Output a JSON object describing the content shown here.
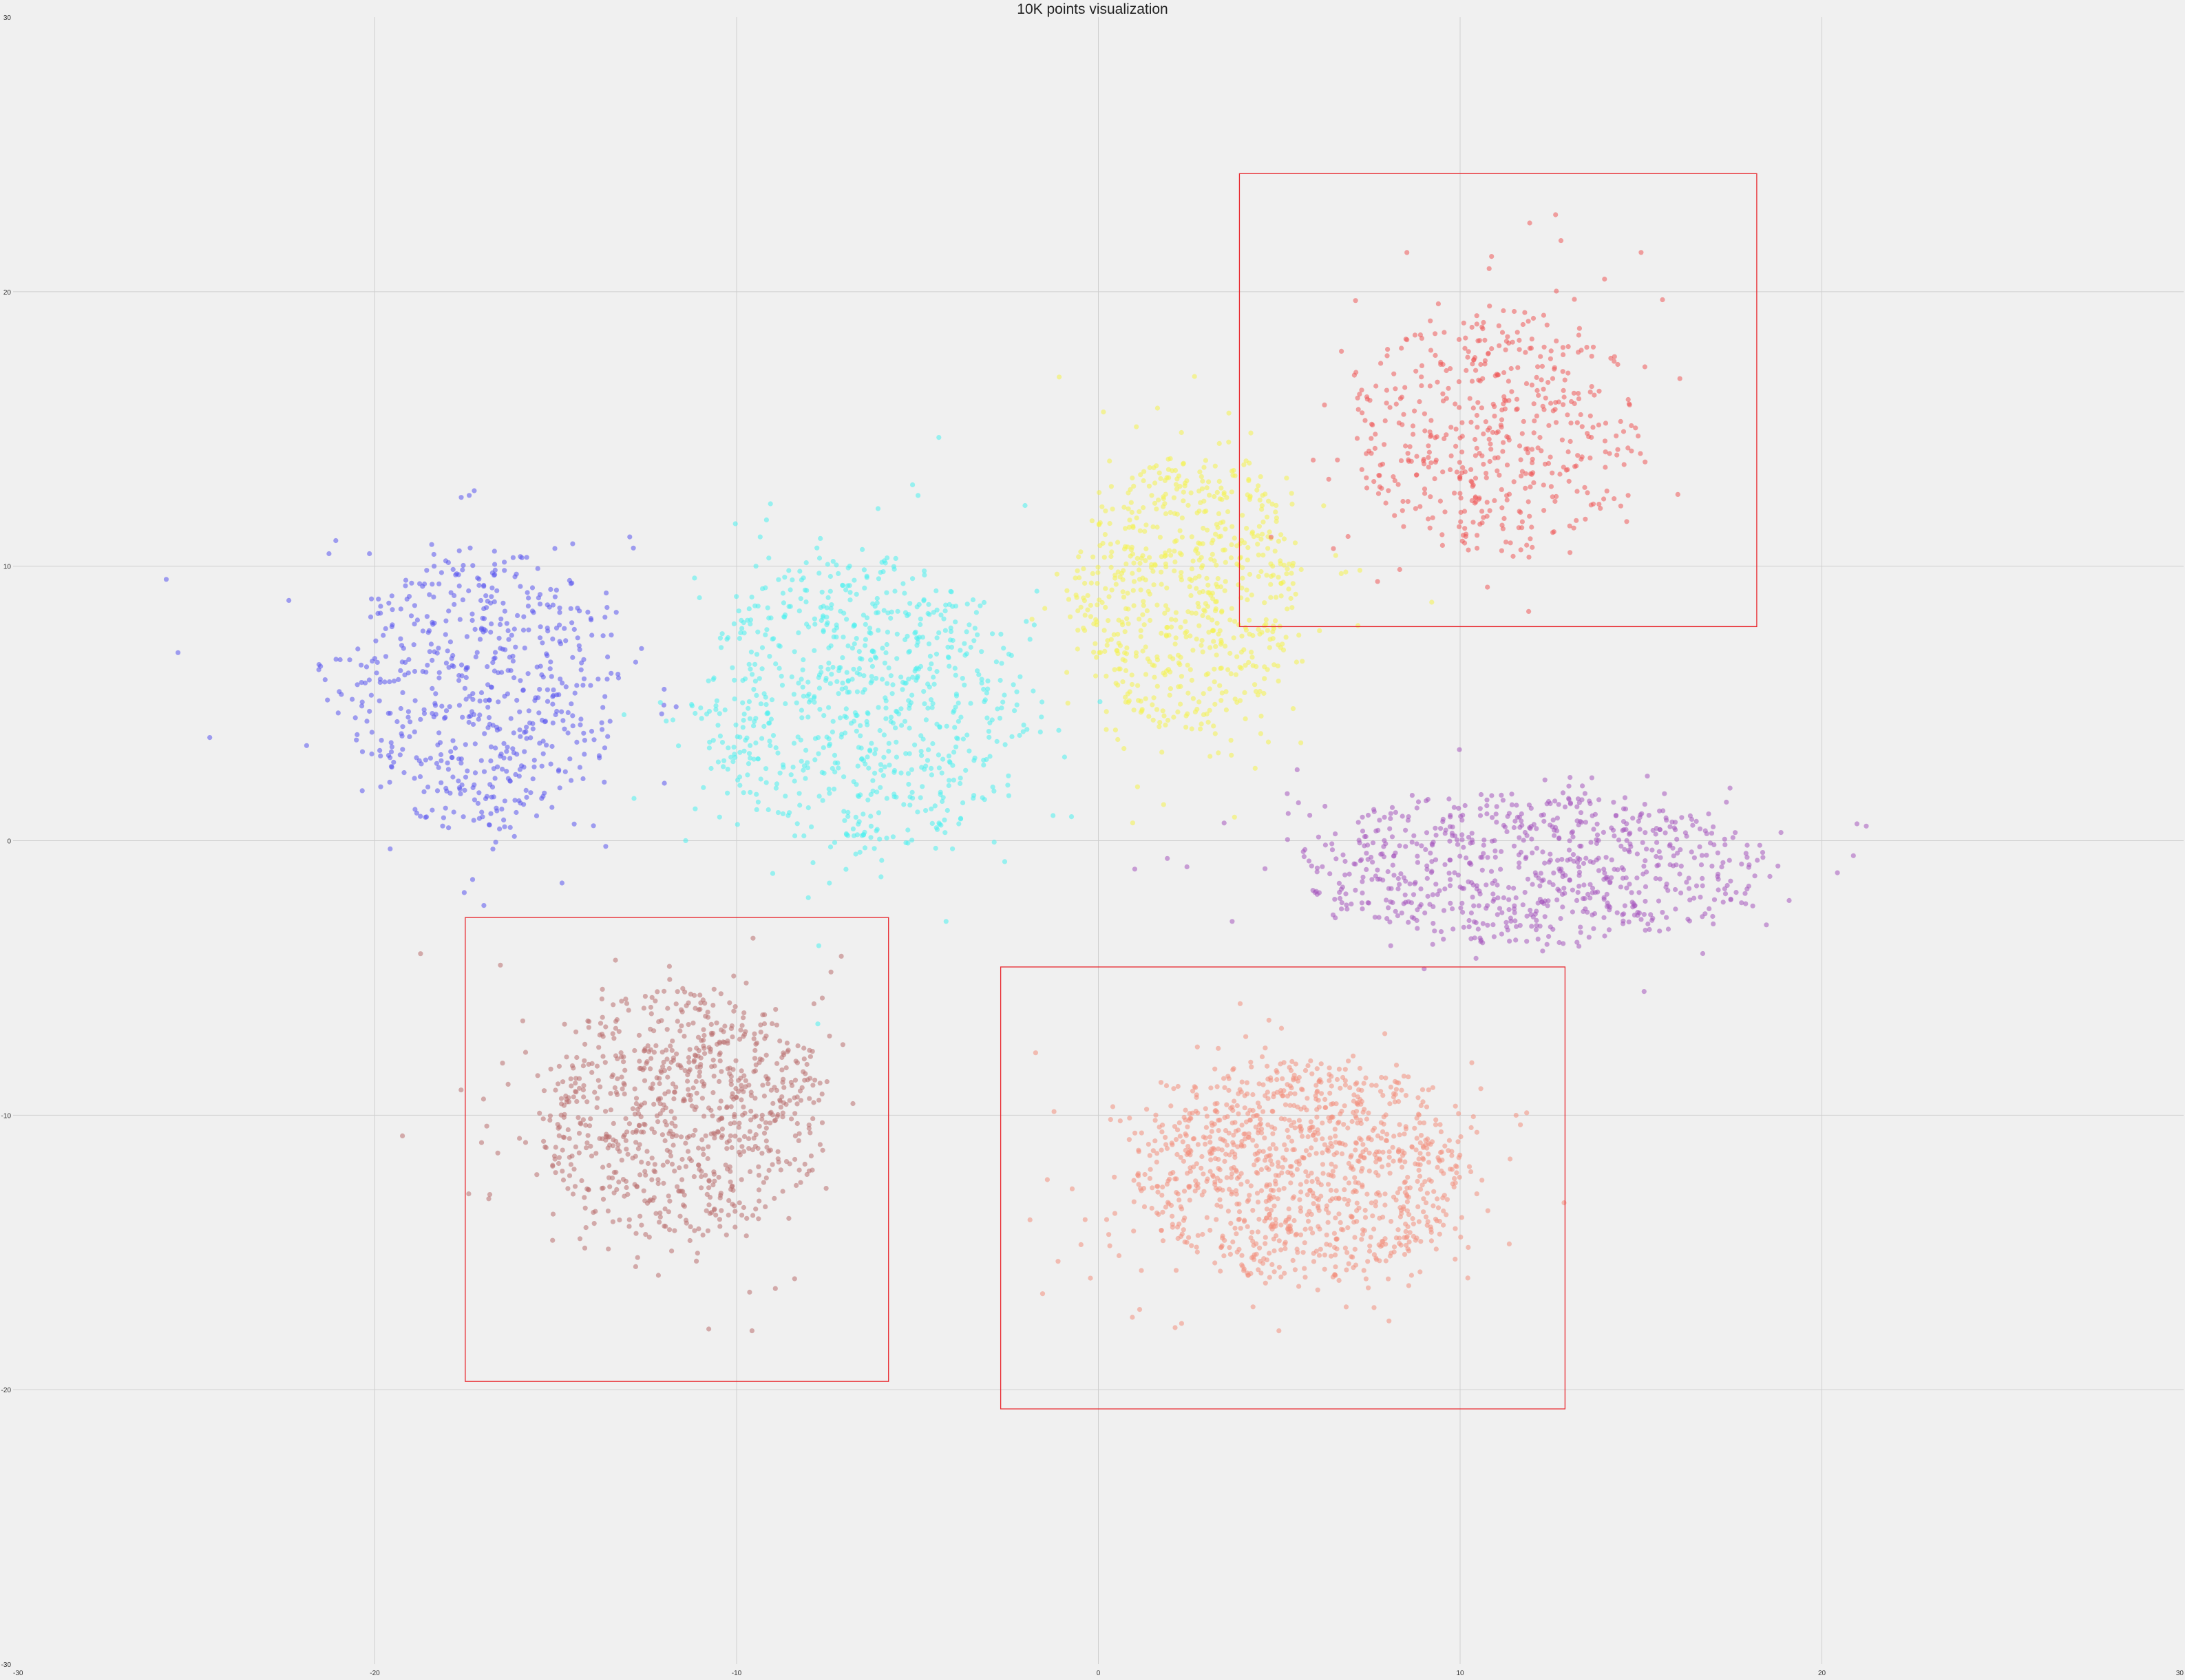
{
  "chart_data": {
    "type": "scatter",
    "title": "10K points visualization",
    "xlabel": "",
    "ylabel": "",
    "xlim": [
      -30,
      30
    ],
    "ylim": [
      -30,
      30
    ],
    "grid": true,
    "x_ticks": [
      "-30",
      "-20",
      "-10",
      "0",
      "10",
      "20",
      "30"
    ],
    "y_ticks": [
      "30",
      "20",
      "10",
      "0",
      "-10",
      "-20",
      "-30"
    ],
    "colors": {
      "background": "#f0f0f0",
      "grid": "#cfcfcf",
      "box": "#e8282e"
    },
    "clusters": [
      {
        "color": "#5a55ee",
        "center": [
          -17,
          5.5
        ],
        "spread": [
          3.8,
          5.2
        ],
        "count": 620
      },
      {
        "color": "#4cf0ee",
        "center": [
          -6.5,
          5
        ],
        "spread": [
          4.5,
          5.5
        ],
        "count": 820
      },
      {
        "color": "#f4f24e",
        "center": [
          2.5,
          9
        ],
        "spread": [
          3.2,
          5.0
        ],
        "count": 700
      },
      {
        "color": "#ee5a5a",
        "center": [
          11,
          15
        ],
        "spread": [
          4.0,
          4.5
        ],
        "count": 520
      },
      {
        "color": "#b97070",
        "center": [
          -11.5,
          -10
        ],
        "spread": [
          4.0,
          4.6
        ],
        "count": 860
      },
      {
        "color": "#f3907e",
        "center": [
          5.5,
          -12
        ],
        "spread": [
          4.6,
          4.0
        ],
        "count": 1150
      },
      {
        "color": "#a658be",
        "center": [
          12,
          -1
        ],
        "spread": [
          6.5,
          2.8
        ],
        "count": 780
      }
    ],
    "highlight_boxes": [
      {
        "x": [
          3.9,
          18.2
        ],
        "y": [
          7.8,
          24.3
        ]
      },
      {
        "x": [
          -17.5,
          -5.8
        ],
        "y": [
          -19.7,
          -2.8
        ]
      },
      {
        "x": [
          -2.7,
          12.9
        ],
        "y": [
          -20.7,
          -4.6
        ]
      }
    ]
  }
}
